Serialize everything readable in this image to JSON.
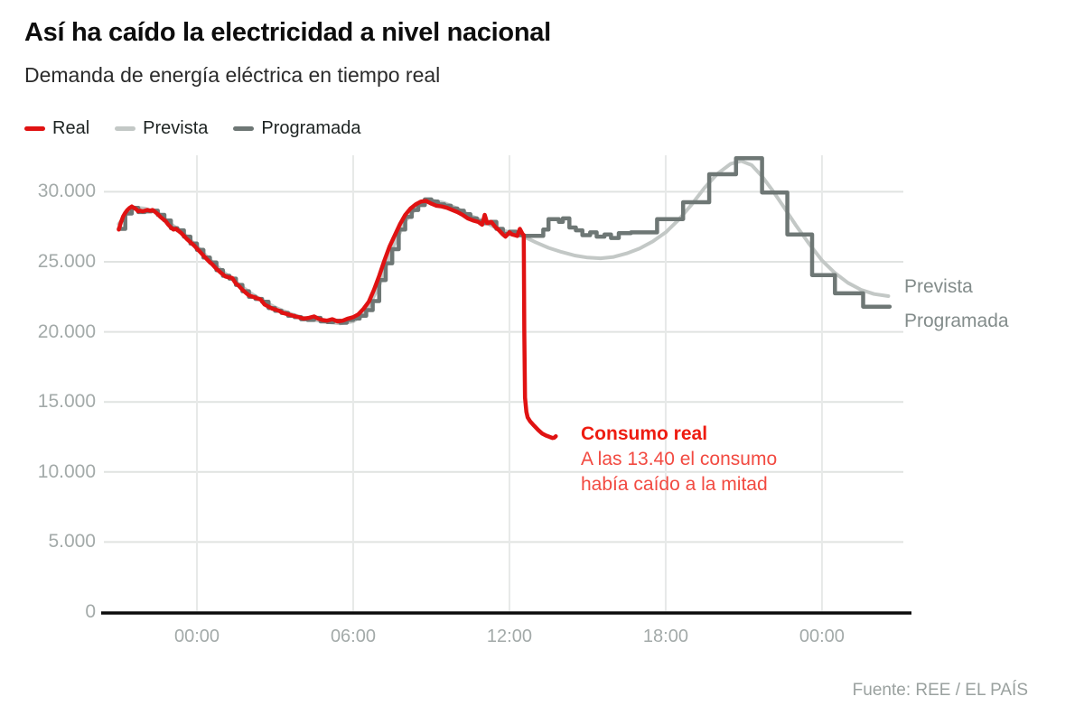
{
  "header": {
    "title": "Así ha caído la electricidad a nivel nacional",
    "subtitle": "Demanda de energía eléctrica en tiempo real"
  },
  "legend": [
    {
      "label": "Real",
      "color": "#e01212"
    },
    {
      "label": "Prevista",
      "color": "#c3c8c6"
    },
    {
      "label": "Programada",
      "color": "#6e7775"
    }
  ],
  "chart_data": {
    "type": "line",
    "title": "Demanda de energía eléctrica en tiempo real",
    "xlabel": "",
    "ylabel": "",
    "x_unit": "hours elapsed since 21:00 of previous day",
    "ylim": [
      0,
      32500
    ],
    "grid": true,
    "x_ticks": [
      {
        "h": 3,
        "label": "00:00"
      },
      {
        "h": 9,
        "label": "06:00"
      },
      {
        "h": 15,
        "label": "12:00"
      },
      {
        "h": 21,
        "label": "18:00"
      },
      {
        "h": 27,
        "label": "00:00"
      }
    ],
    "y_ticks": [
      {
        "v": 30000,
        "label": "30.000"
      },
      {
        "v": 25000,
        "label": "25.000"
      },
      {
        "v": 20000,
        "label": "20.000"
      },
      {
        "v": 15000,
        "label": "15.000"
      },
      {
        "v": 10000,
        "label": "10.000"
      },
      {
        "v": 5000,
        "label": "5.000"
      },
      {
        "v": 0,
        "label": "0"
      }
    ],
    "series": [
      {
        "name": "Prevista",
        "color": "#c3c8c6",
        "step": false,
        "points": [
          [
            0,
            27700
          ],
          [
            0.5,
            28900
          ],
          [
            1,
            28800
          ],
          [
            1.5,
            28500
          ],
          [
            2,
            27700
          ],
          [
            2.5,
            27000
          ],
          [
            3,
            26100
          ],
          [
            3.5,
            25150
          ],
          [
            4,
            24300
          ],
          [
            4.5,
            23550
          ],
          [
            5,
            22850
          ],
          [
            5.5,
            22250
          ],
          [
            6,
            21750
          ],
          [
            6.5,
            21350
          ],
          [
            7,
            21050
          ],
          [
            7.5,
            20850
          ],
          [
            8,
            20700
          ],
          [
            8.5,
            20600
          ],
          [
            9,
            20750
          ],
          [
            9.5,
            21450
          ],
          [
            10,
            23300
          ],
          [
            10.5,
            25900
          ],
          [
            11,
            27900
          ],
          [
            11.5,
            29000
          ],
          [
            12,
            29400
          ],
          [
            12.5,
            29200
          ],
          [
            13,
            28800
          ],
          [
            13.5,
            28300
          ],
          [
            14,
            27900
          ],
          [
            14.5,
            27400
          ],
          [
            15,
            27100
          ],
          [
            15.5,
            26850
          ],
          [
            16,
            26400
          ],
          [
            16.5,
            26000
          ],
          [
            17,
            25700
          ],
          [
            17.5,
            25450
          ],
          [
            18,
            25300
          ],
          [
            18.5,
            25250
          ],
          [
            19,
            25350
          ],
          [
            19.5,
            25600
          ],
          [
            20,
            25950
          ],
          [
            20.5,
            26450
          ],
          [
            21,
            27100
          ],
          [
            21.5,
            28000
          ],
          [
            22,
            29100
          ],
          [
            22.5,
            30300
          ],
          [
            23,
            31300
          ],
          [
            23.5,
            32000
          ],
          [
            23.9,
            32200
          ],
          [
            24.3,
            31900
          ],
          [
            24.7,
            31100
          ],
          [
            25.1,
            30100
          ],
          [
            25.5,
            29000
          ],
          [
            26,
            27600
          ],
          [
            26.5,
            26300
          ],
          [
            27,
            25100
          ],
          [
            27.5,
            24200
          ],
          [
            28,
            23500
          ],
          [
            28.5,
            23000
          ],
          [
            29,
            22700
          ],
          [
            29.55,
            22550
          ]
        ]
      },
      {
        "name": "Programada",
        "color": "#6e7775",
        "step": true,
        "points": [
          [
            0,
            27350
          ],
          [
            0.25,
            28450
          ],
          [
            0.5,
            28850
          ],
          [
            0.75,
            28550
          ],
          [
            1,
            28600
          ],
          [
            1.25,
            28650
          ],
          [
            1.5,
            28350
          ],
          [
            1.75,
            27950
          ],
          [
            2,
            27400
          ],
          [
            2.25,
            27250
          ],
          [
            2.5,
            26800
          ],
          [
            2.75,
            26300
          ],
          [
            3,
            25850
          ],
          [
            3.25,
            25300
          ],
          [
            3.5,
            24950
          ],
          [
            3.75,
            24400
          ],
          [
            4,
            24000
          ],
          [
            4.25,
            23800
          ],
          [
            4.5,
            23350
          ],
          [
            4.75,
            22900
          ],
          [
            5,
            22500
          ],
          [
            5.25,
            22350
          ],
          [
            5.5,
            22150
          ],
          [
            5.75,
            21700
          ],
          [
            6,
            21500
          ],
          [
            6.25,
            21350
          ],
          [
            6.5,
            21150
          ],
          [
            6.75,
            21050
          ],
          [
            7,
            20900
          ],
          [
            7.25,
            20850
          ],
          [
            7.5,
            21000
          ],
          [
            7.75,
            20750
          ],
          [
            8,
            20700
          ],
          [
            8.25,
            20800
          ],
          [
            8.5,
            20650
          ],
          [
            8.75,
            20850
          ],
          [
            9,
            20950
          ],
          [
            9.25,
            21150
          ],
          [
            9.5,
            21550
          ],
          [
            9.75,
            22200
          ],
          [
            10,
            23700
          ],
          [
            10.25,
            24900
          ],
          [
            10.5,
            25900
          ],
          [
            10.75,
            27300
          ],
          [
            11,
            28200
          ],
          [
            11.25,
            28700
          ],
          [
            11.5,
            29050
          ],
          [
            11.75,
            29450
          ],
          [
            12,
            29300
          ],
          [
            12.25,
            29100
          ],
          [
            12.5,
            29000
          ],
          [
            12.75,
            28800
          ],
          [
            13,
            28650
          ],
          [
            13.25,
            28400
          ],
          [
            13.5,
            28100
          ],
          [
            13.75,
            27900
          ],
          [
            14,
            27750
          ],
          [
            14.25,
            27850
          ],
          [
            14.5,
            27350
          ],
          [
            14.75,
            27000
          ],
          [
            15,
            27150
          ],
          [
            15.25,
            26900
          ],
          [
            15.55,
            26850
          ],
          [
            16.3,
            27300
          ],
          [
            16.5,
            28050
          ],
          [
            16.9,
            27850
          ],
          [
            17.05,
            28100
          ],
          [
            17.3,
            27450
          ],
          [
            17.55,
            27250
          ],
          [
            17.8,
            26900
          ],
          [
            18.1,
            27100
          ],
          [
            18.35,
            26800
          ],
          [
            18.65,
            26950
          ],
          [
            18.9,
            26700
          ],
          [
            19.2,
            27050
          ],
          [
            19.67,
            27100
          ],
          [
            20.67,
            28050
          ],
          [
            21.67,
            29250
          ],
          [
            22.67,
            31250
          ],
          [
            23.7,
            32400
          ],
          [
            24.7,
            29950
          ],
          [
            25.67,
            26950
          ],
          [
            26.62,
            24050
          ],
          [
            27.5,
            22750
          ],
          [
            28.58,
            21800
          ],
          [
            29.6,
            21800
          ]
        ]
      },
      {
        "name": "Real",
        "color": "#e01212",
        "step": false,
        "points": [
          [
            0,
            27300
          ],
          [
            0.08,
            27800
          ],
          [
            0.17,
            28250
          ],
          [
            0.25,
            28500
          ],
          [
            0.33,
            28700
          ],
          [
            0.42,
            28850
          ],
          [
            0.5,
            28950
          ],
          [
            0.58,
            28850
          ],
          [
            0.67,
            28750
          ],
          [
            0.75,
            28600
          ],
          [
            0.83,
            28650
          ],
          [
            0.92,
            28600
          ],
          [
            1,
            28650
          ],
          [
            1.1,
            28700
          ],
          [
            1.2,
            28650
          ],
          [
            1.3,
            28700
          ],
          [
            1.4,
            28550
          ],
          [
            1.5,
            28400
          ],
          [
            1.6,
            28200
          ],
          [
            1.7,
            28050
          ],
          [
            1.8,
            27900
          ],
          [
            1.9,
            27650
          ],
          [
            2,
            27450
          ],
          [
            2.1,
            27300
          ],
          [
            2.2,
            27350
          ],
          [
            2.3,
            27200
          ],
          [
            2.4,
            27050
          ],
          [
            2.5,
            26850
          ],
          [
            2.6,
            26650
          ],
          [
            2.75,
            26400
          ],
          [
            2.9,
            26150
          ],
          [
            3,
            25950
          ],
          [
            3.15,
            25650
          ],
          [
            3.3,
            25350
          ],
          [
            3.45,
            25050
          ],
          [
            3.6,
            24800
          ],
          [
            3.75,
            24500
          ],
          [
            3.9,
            24250
          ],
          [
            4,
            24100
          ],
          [
            4.1,
            23950
          ],
          [
            4.2,
            23900
          ],
          [
            4.35,
            23850
          ],
          [
            4.5,
            23450
          ],
          [
            4.6,
            23300
          ],
          [
            4.75,
            23000
          ],
          [
            4.9,
            22750
          ],
          [
            5,
            22600
          ],
          [
            5.15,
            22500
          ],
          [
            5.3,
            22400
          ],
          [
            5.45,
            22300
          ],
          [
            5.6,
            21950
          ],
          [
            5.75,
            21800
          ],
          [
            5.9,
            21650
          ],
          [
            6,
            21600
          ],
          [
            6.15,
            21500
          ],
          [
            6.3,
            21350
          ],
          [
            6.5,
            21250
          ],
          [
            6.7,
            21150
          ],
          [
            6.9,
            21050
          ],
          [
            7.1,
            20950
          ],
          [
            7.3,
            21000
          ],
          [
            7.5,
            21100
          ],
          [
            7.65,
            20950
          ],
          [
            7.8,
            20850
          ],
          [
            8,
            20800
          ],
          [
            8.2,
            20900
          ],
          [
            8.4,
            20750
          ],
          [
            8.6,
            20800
          ],
          [
            8.8,
            20950
          ],
          [
            9,
            21050
          ],
          [
            9.2,
            21250
          ],
          [
            9.4,
            21650
          ],
          [
            9.6,
            22150
          ],
          [
            9.8,
            23000
          ],
          [
            10,
            24000
          ],
          [
            10.2,
            25100
          ],
          [
            10.4,
            26100
          ],
          [
            10.6,
            26900
          ],
          [
            10.8,
            27700
          ],
          [
            11,
            28350
          ],
          [
            11.2,
            28800
          ],
          [
            11.4,
            29100
          ],
          [
            11.6,
            29300
          ],
          [
            11.8,
            29350
          ],
          [
            12,
            29150
          ],
          [
            12.2,
            29000
          ],
          [
            12.4,
            28950
          ],
          [
            12.6,
            28850
          ],
          [
            12.8,
            28700
          ],
          [
            13,
            28550
          ],
          [
            13.2,
            28350
          ],
          [
            13.4,
            28100
          ],
          [
            13.6,
            27950
          ],
          [
            13.8,
            27850
          ],
          [
            13.95,
            27650
          ],
          [
            14.05,
            28350
          ],
          [
            14.15,
            27750
          ],
          [
            14.3,
            27850
          ],
          [
            14.45,
            27500
          ],
          [
            14.6,
            27250
          ],
          [
            14.75,
            26950
          ],
          [
            14.85,
            26800
          ],
          [
            15,
            27100
          ],
          [
            15.1,
            26950
          ],
          [
            15.2,
            26900
          ],
          [
            15.3,
            26850
          ],
          [
            15.4,
            27350
          ],
          [
            15.5,
            27000
          ],
          [
            15.55,
            26900
          ],
          [
            15.57,
            20000
          ],
          [
            15.6,
            15300
          ],
          [
            15.65,
            14300
          ],
          [
            15.7,
            13900
          ],
          [
            15.8,
            13600
          ],
          [
            15.95,
            13300
          ],
          [
            16.1,
            13000
          ],
          [
            16.25,
            12750
          ],
          [
            16.4,
            12600
          ],
          [
            16.55,
            12500
          ],
          [
            16.65,
            12420
          ],
          [
            16.72,
            12440
          ],
          [
            16.78,
            12550
          ]
        ]
      }
    ],
    "right_labels": [
      "Prevista",
      "Programada"
    ],
    "annotation": {
      "title": "Consumo real",
      "line1": "A las 13.40 el consumo",
      "line2": "había caído a la mitad"
    },
    "legend_position": "top-left"
  },
  "footer": {
    "source": "Fuente: REE / EL PAÍS"
  }
}
